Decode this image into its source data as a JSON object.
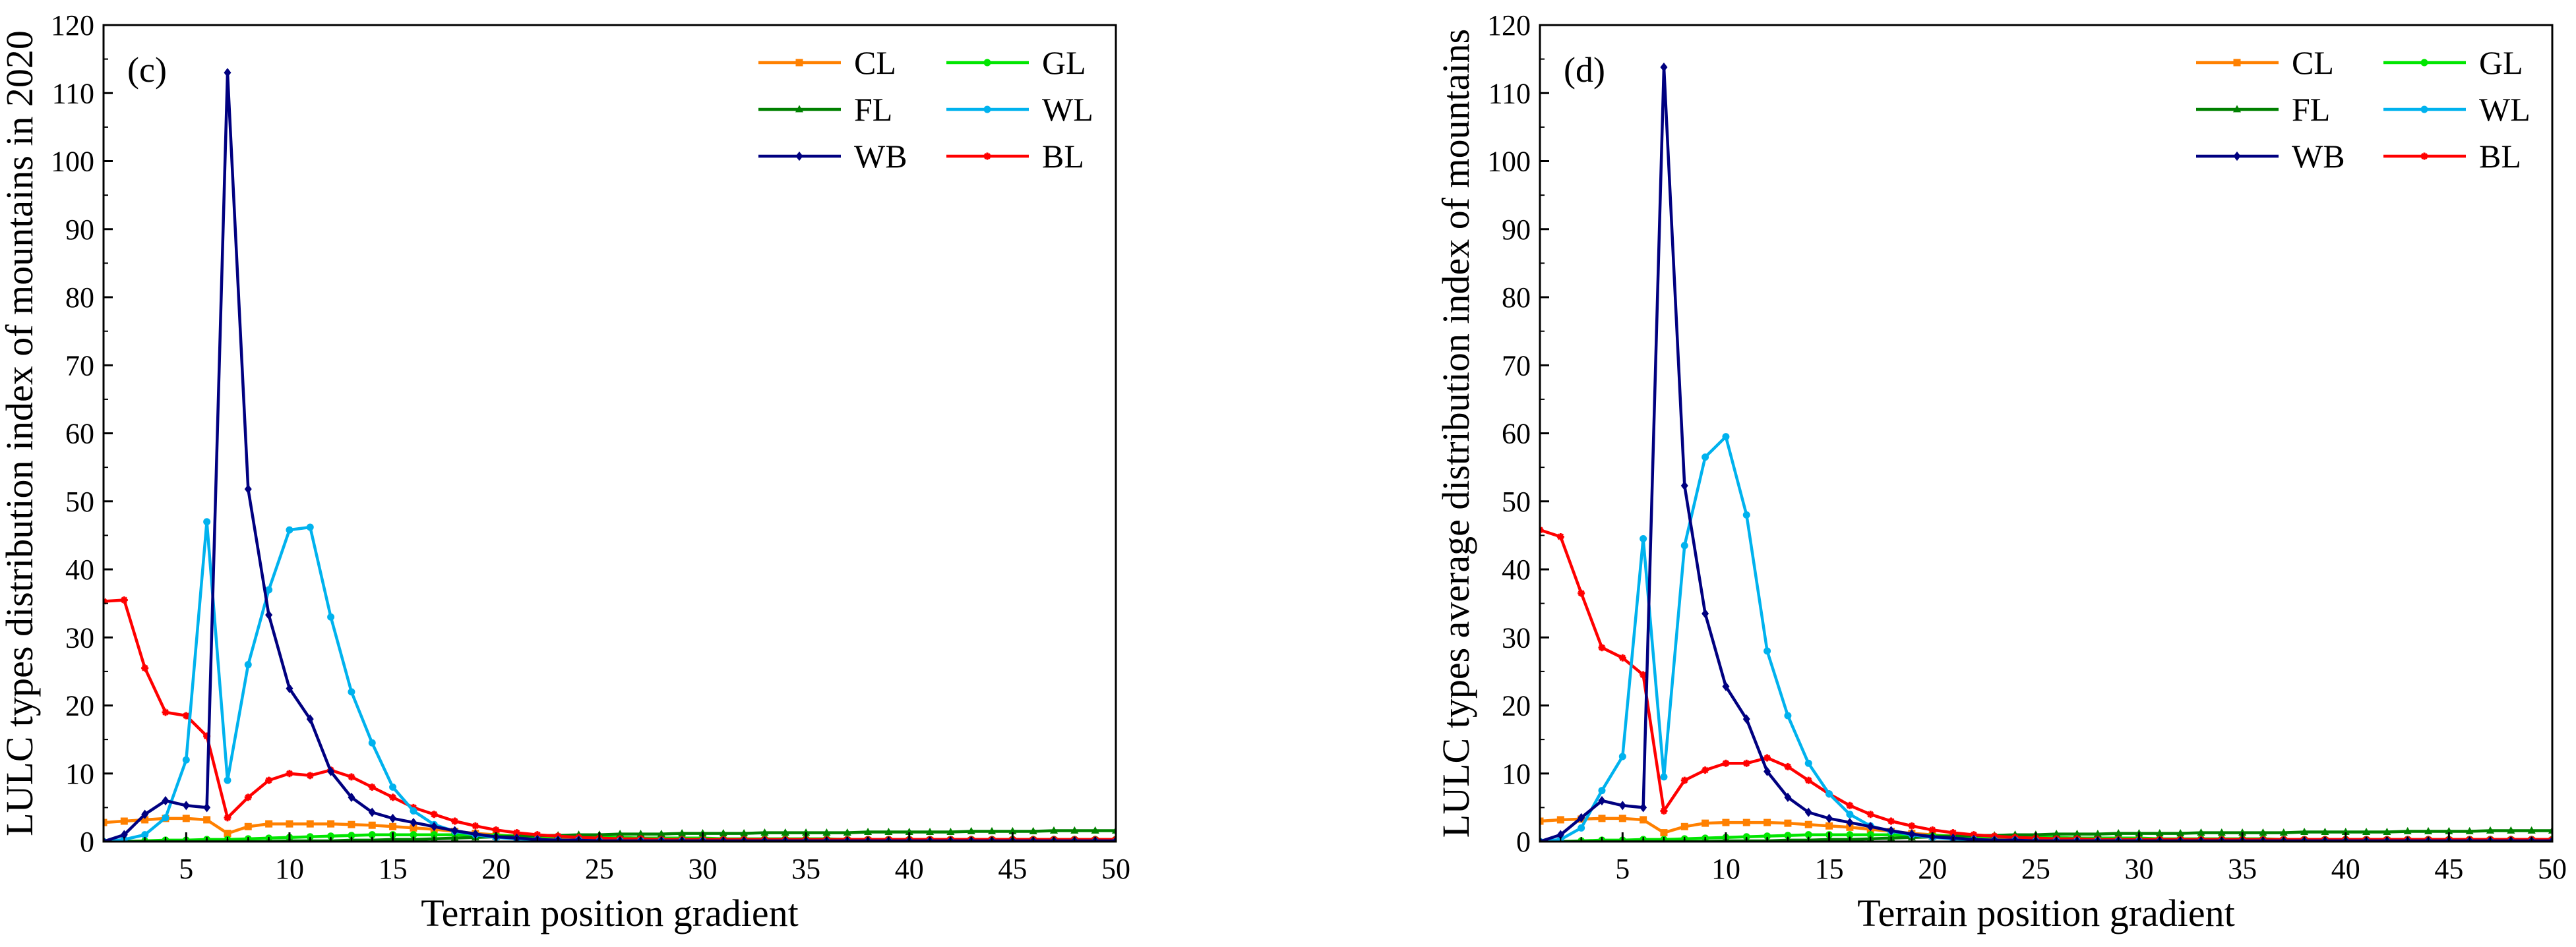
{
  "colors": {
    "CL": "#ff8000",
    "GL": "#00e600",
    "FL": "#008000",
    "WL": "#00b2ee",
    "WB": "#000080",
    "BL": "#ff0000"
  },
  "chart_data": [
    {
      "type": "line",
      "panel_label": "(c)",
      "xlabel": "Terrain position gradient",
      "ylabel": "LULC types distribution index of mountains in 2020",
      "xlim": [
        1,
        50
      ],
      "ylim": [
        0,
        120
      ],
      "xticks": [
        5,
        10,
        15,
        20,
        25,
        30,
        35,
        40,
        45,
        50
      ],
      "yticks": [
        0,
        10,
        20,
        30,
        40,
        50,
        60,
        70,
        80,
        90,
        100,
        110,
        120
      ],
      "legend_position": "top-right",
      "x": [
        1,
        2,
        3,
        4,
        5,
        6,
        7,
        8,
        9,
        10,
        11,
        12,
        13,
        14,
        15,
        16,
        17,
        18,
        19,
        20,
        21,
        22,
        23,
        24,
        25,
        26,
        27,
        28,
        29,
        30,
        31,
        32,
        33,
        34,
        35,
        36,
        37,
        38,
        39,
        40,
        41,
        42,
        43,
        44,
        45,
        46,
        47,
        48,
        49,
        50
      ],
      "series": [
        {
          "name": "CL",
          "marker": "square",
          "values": [
            2.8,
            3.0,
            3.2,
            3.4,
            3.4,
            3.2,
            1.2,
            2.2,
            2.6,
            2.6,
            2.6,
            2.6,
            2.5,
            2.4,
            2.2,
            2.0,
            1.8,
            1.5,
            1.2,
            1.0,
            0.8,
            0.6,
            0.5,
            0.4,
            0.3,
            0.3,
            0.2,
            0.2,
            0.2,
            0.2,
            0.1,
            0.1,
            0.1,
            0.1,
            0.1,
            0.1,
            0.1,
            0.1,
            0.1,
            0.1,
            0.1,
            0.1,
            0.1,
            0.1,
            0.1,
            0.1,
            0.1,
            0.1,
            0.1,
            0.1
          ]
        },
        {
          "name": "GL",
          "marker": "circle",
          "values": [
            0.0,
            0.0,
            0.1,
            0.2,
            0.2,
            0.3,
            0.3,
            0.4,
            0.5,
            0.6,
            0.7,
            0.8,
            0.9,
            1.0,
            1.0,
            1.0,
            1.0,
            1.0,
            0.9,
            0.9,
            0.8,
            0.8,
            0.7,
            0.7,
            0.6,
            0.6,
            0.5,
            0.5,
            0.5,
            0.5,
            0.4,
            0.4,
            0.4,
            0.4,
            0.4,
            0.4,
            0.3,
            0.3,
            0.3,
            0.3,
            0.3,
            0.3,
            0.3,
            0.3,
            0.3,
            0.3,
            0.3,
            0.3,
            0.3,
            0.3
          ]
        },
        {
          "name": "FL",
          "marker": "triangle",
          "values": [
            0.0,
            0.0,
            0.0,
            0.0,
            0.0,
            0.0,
            0.0,
            0.0,
            0.0,
            0.1,
            0.1,
            0.1,
            0.2,
            0.2,
            0.3,
            0.3,
            0.4,
            0.5,
            0.6,
            0.7,
            0.8,
            0.9,
            0.9,
            1.0,
            1.0,
            1.1,
            1.1,
            1.1,
            1.2,
            1.2,
            1.2,
            1.2,
            1.3,
            1.3,
            1.3,
            1.3,
            1.3,
            1.4,
            1.4,
            1.4,
            1.4,
            1.4,
            1.5,
            1.5,
            1.5,
            1.5,
            1.6,
            1.6,
            1.6,
            1.6
          ]
        },
        {
          "name": "WL",
          "marker": "circle",
          "values": [
            0.0,
            0.3,
            1.0,
            3.5,
            12.0,
            47.0,
            9.0,
            26.0,
            37.0,
            45.8,
            46.2,
            33.0,
            22.0,
            14.5,
            8.0,
            4.5,
            2.5,
            1.5,
            1.0,
            0.6,
            0.4,
            0.3,
            0.2,
            0.2,
            0.1,
            0.1,
            0.1,
            0.1,
            0.1,
            0.1,
            0.0,
            0.0,
            0.0,
            0.0,
            0.0,
            0.0,
            0.0,
            0.0,
            0.0,
            0.0,
            0.0,
            0.0,
            0.0,
            0.0,
            0.0,
            0.0,
            0.0,
            0.0,
            0.0,
            0.0
          ]
        },
        {
          "name": "WB",
          "marker": "diamond",
          "values": [
            0.0,
            1.0,
            4.0,
            6.0,
            5.3,
            5.0,
            113.0,
            51.8,
            33.3,
            22.5,
            18.0,
            10.3,
            6.5,
            4.3,
            3.4,
            2.8,
            2.2,
            1.6,
            1.1,
            0.7,
            0.5,
            0.3,
            0.2,
            0.2,
            0.1,
            0.1,
            0.1,
            0.1,
            0.1,
            0.1,
            0.1,
            0.1,
            0.1,
            0.1,
            0.1,
            0.1,
            0.1,
            0.1,
            0.1,
            0.1,
            0.1,
            0.1,
            0.1,
            0.1,
            0.1,
            0.1,
            0.1,
            0.1,
            0.1,
            0.1
          ]
        },
        {
          "name": "BL",
          "marker": "star",
          "values": [
            35.3,
            35.5,
            25.5,
            19.0,
            18.5,
            15.5,
            3.5,
            6.5,
            9.0,
            10.0,
            9.7,
            10.5,
            9.5,
            8.0,
            6.5,
            5.0,
            4.0,
            3.0,
            2.3,
            1.7,
            1.3,
            1.0,
            0.8,
            0.6,
            0.5,
            0.4,
            0.4,
            0.3,
            0.3,
            0.3,
            0.3,
            0.3,
            0.3,
            0.3,
            0.3,
            0.3,
            0.3,
            0.3,
            0.3,
            0.3,
            0.3,
            0.3,
            0.3,
            0.3,
            0.3,
            0.3,
            0.3,
            0.3,
            0.3,
            0.3
          ]
        }
      ]
    },
    {
      "type": "line",
      "panel_label": "(d)",
      "xlabel": "Terrain position gradient",
      "ylabel": "LULC types average distribution index of mountains",
      "xlim": [
        1,
        50
      ],
      "ylim": [
        0,
        120
      ],
      "xticks": [
        5,
        10,
        15,
        20,
        25,
        30,
        35,
        40,
        45,
        50
      ],
      "yticks": [
        0,
        10,
        20,
        30,
        40,
        50,
        60,
        70,
        80,
        90,
        100,
        110,
        120
      ],
      "legend_position": "top-right",
      "x": [
        1,
        2,
        3,
        4,
        5,
        6,
        7,
        8,
        9,
        10,
        11,
        12,
        13,
        14,
        15,
        16,
        17,
        18,
        19,
        20,
        21,
        22,
        23,
        24,
        25,
        26,
        27,
        28,
        29,
        30,
        31,
        32,
        33,
        34,
        35,
        36,
        37,
        38,
        39,
        40,
        41,
        42,
        43,
        44,
        45,
        46,
        47,
        48,
        49,
        50
      ],
      "series": [
        {
          "name": "CL",
          "marker": "square",
          "values": [
            3.0,
            3.2,
            3.3,
            3.4,
            3.4,
            3.2,
            1.3,
            2.2,
            2.7,
            2.8,
            2.8,
            2.8,
            2.7,
            2.5,
            2.3,
            2.1,
            1.8,
            1.5,
            1.2,
            1.0,
            0.8,
            0.6,
            0.5,
            0.4,
            0.3,
            0.3,
            0.2,
            0.2,
            0.2,
            0.2,
            0.1,
            0.1,
            0.1,
            0.1,
            0.1,
            0.1,
            0.1,
            0.1,
            0.1,
            0.1,
            0.1,
            0.1,
            0.1,
            0.1,
            0.1,
            0.1,
            0.1,
            0.1,
            0.1,
            0.1
          ]
        },
        {
          "name": "GL",
          "marker": "circle",
          "values": [
            0.0,
            0.0,
            0.1,
            0.2,
            0.2,
            0.3,
            0.3,
            0.4,
            0.5,
            0.6,
            0.7,
            0.8,
            0.9,
            1.0,
            1.0,
            1.0,
            1.0,
            1.0,
            0.9,
            0.9,
            0.8,
            0.8,
            0.7,
            0.7,
            0.6,
            0.6,
            0.5,
            0.5,
            0.5,
            0.5,
            0.4,
            0.4,
            0.4,
            0.4,
            0.4,
            0.4,
            0.3,
            0.3,
            0.3,
            0.3,
            0.3,
            0.3,
            0.3,
            0.3,
            0.3,
            0.3,
            0.3,
            0.3,
            0.3,
            0.3
          ]
        },
        {
          "name": "FL",
          "marker": "triangle",
          "values": [
            0.0,
            0.0,
            0.0,
            0.0,
            0.0,
            0.0,
            0.0,
            0.0,
            0.0,
            0.1,
            0.1,
            0.1,
            0.2,
            0.2,
            0.3,
            0.3,
            0.4,
            0.5,
            0.6,
            0.7,
            0.8,
            0.9,
            0.9,
            1.0,
            1.0,
            1.1,
            1.1,
            1.1,
            1.2,
            1.2,
            1.2,
            1.2,
            1.3,
            1.3,
            1.3,
            1.3,
            1.3,
            1.4,
            1.4,
            1.4,
            1.4,
            1.4,
            1.5,
            1.5,
            1.5,
            1.5,
            1.6,
            1.6,
            1.6,
            1.6
          ]
        },
        {
          "name": "WL",
          "marker": "circle",
          "values": [
            0.0,
            0.3,
            2.0,
            7.5,
            12.5,
            44.5,
            9.5,
            43.5,
            56.5,
            59.5,
            48.0,
            28.0,
            18.5,
            11.5,
            7.0,
            4.0,
            2.3,
            1.5,
            1.0,
            0.6,
            0.4,
            0.3,
            0.2,
            0.2,
            0.1,
            0.1,
            0.1,
            0.1,
            0.1,
            0.1,
            0.0,
            0.0,
            0.0,
            0.0,
            0.0,
            0.0,
            0.0,
            0.0,
            0.0,
            0.0,
            0.0,
            0.0,
            0.0,
            0.0,
            0.0,
            0.0,
            0.0,
            0.0,
            0.0,
            0.0
          ]
        },
        {
          "name": "WB",
          "marker": "diamond",
          "values": [
            0.0,
            1.0,
            3.5,
            6.0,
            5.3,
            5.0,
            113.8,
            52.3,
            33.5,
            22.8,
            18.0,
            10.3,
            6.5,
            4.3,
            3.4,
            2.8,
            2.2,
            1.6,
            1.1,
            0.7,
            0.5,
            0.3,
            0.2,
            0.2,
            0.1,
            0.1,
            0.1,
            0.1,
            0.1,
            0.1,
            0.1,
            0.1,
            0.1,
            0.1,
            0.1,
            0.1,
            0.1,
            0.1,
            0.1,
            0.1,
            0.1,
            0.1,
            0.1,
            0.1,
            0.1,
            0.1,
            0.1,
            0.1,
            0.1,
            0.1
          ]
        },
        {
          "name": "BL",
          "marker": "star",
          "values": [
            45.8,
            44.8,
            36.5,
            28.5,
            27.0,
            24.5,
            4.5,
            9.0,
            10.5,
            11.5,
            11.5,
            12.3,
            11.0,
            9.0,
            7.0,
            5.3,
            4.0,
            3.0,
            2.3,
            1.7,
            1.3,
            1.0,
            0.8,
            0.6,
            0.5,
            0.4,
            0.4,
            0.3,
            0.3,
            0.3,
            0.3,
            0.3,
            0.3,
            0.3,
            0.3,
            0.3,
            0.3,
            0.3,
            0.3,
            0.3,
            0.3,
            0.3,
            0.3,
            0.3,
            0.3,
            0.3,
            0.3,
            0.3,
            0.3,
            0.3
          ]
        }
      ]
    }
  ]
}
